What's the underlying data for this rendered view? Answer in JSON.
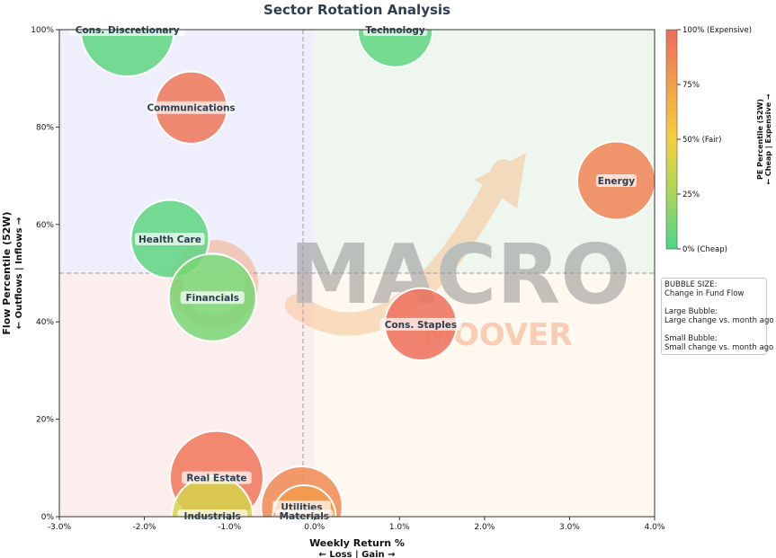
{
  "chart_data": {
    "type": "scatter",
    "title": "Sector Rotation Analysis",
    "xlabel": "Weekly Return %",
    "xlabel_sub": "← Loss | Gain →",
    "ylabel": "Flow Percentile (52W)",
    "ylabel_sub": "← Outflows | Inflows →",
    "xlim": [
      -3.0,
      4.0
    ],
    "ylim": [
      0,
      100
    ],
    "x_ticks": [
      "-3.0%",
      "-2.0%",
      "-1.0%",
      "0.0%",
      "1.0%",
      "2.0%",
      "3.0%",
      "4.0%"
    ],
    "y_ticks": [
      "0%",
      "20%",
      "40%",
      "60%",
      "80%",
      "100%"
    ],
    "reference_lines": {
      "x": 0.0,
      "y": 50
    },
    "quadrant_colors": {
      "top_left": "#eeeefd",
      "top_right": "#eef6ee",
      "bottom_left": "#fdeeee",
      "bottom_right": "#fef8ee"
    },
    "colorbar": {
      "label": "PE Percentile (52W)",
      "label_sub": "← Cheap | Expensive →",
      "ticks": [
        "0% (Cheap)",
        "25%",
        "50% (Fair)",
        "75%",
        "100% (Expensive)"
      ],
      "colors": [
        "#4cd68a",
        "#a8d65a",
        "#f5d040",
        "#f2a04a",
        "#ee6a5c"
      ]
    },
    "points": [
      {
        "label": "Cons. Discretionary",
        "x": -2.2,
        "y": 100,
        "pe_percentile": 5,
        "flow_change": 1.0
      },
      {
        "label": "Technology",
        "x": 0.95,
        "y": 100,
        "pe_percentile": 5,
        "flow_change": 0.7
      },
      {
        "label": "Communications",
        "x": -1.45,
        "y": 84,
        "pe_percentile": 95,
        "flow_change": 0.65
      },
      {
        "label": "Energy",
        "x": 3.55,
        "y": 69,
        "pe_percentile": 88,
        "flow_change": 0.75
      },
      {
        "label": "Health Care",
        "x": -1.7,
        "y": 57,
        "pe_percentile": 5,
        "flow_change": 0.75
      },
      {
        "label": "Financials",
        "x": -1.2,
        "y": 45,
        "pe_percentile": 12,
        "flow_change": 0.9
      },
      {
        "label": "Cons. Staples",
        "x": 1.25,
        "y": 39.5,
        "pe_percentile": 97,
        "flow_change": 0.65
      },
      {
        "label": "Real Estate",
        "x": -1.15,
        "y": 8,
        "pe_percentile": 95,
        "flow_change": 1.0
      },
      {
        "label": "Industrials",
        "x": -1.2,
        "y": 0,
        "pe_percentile": 40,
        "flow_change": 0.8
      },
      {
        "label": "Utilities",
        "x": -0.15,
        "y": 2,
        "pe_percentile": 85,
        "flow_change": 0.8
      },
      {
        "label": "Materials",
        "x": -0.12,
        "y": 0,
        "pe_percentile": 78,
        "flow_change": 0.5
      }
    ]
  },
  "bubble_note": {
    "title": "BUBBLE SIZE:",
    "subtitle": "Change in Fund Flow",
    "large_title": "Large Bubble:",
    "large_desc": "Large change vs. month ago",
    "small_title": "Small Bubble:",
    "small_desc": "Small change vs. month ago"
  },
  "watermark": {
    "text": "MACRO",
    "sub": "MOOVER"
  }
}
